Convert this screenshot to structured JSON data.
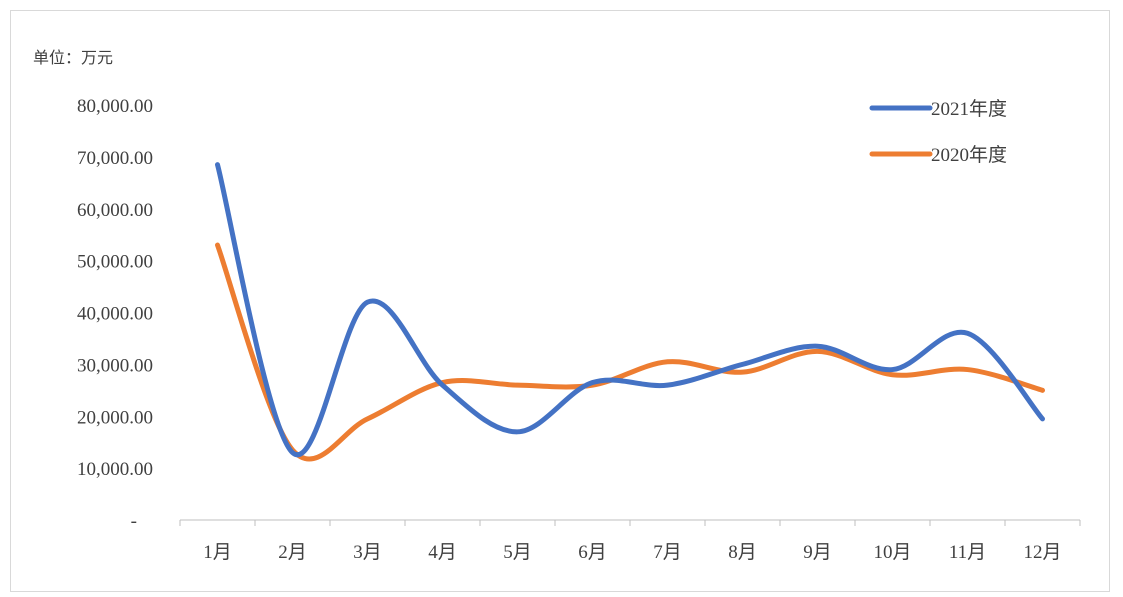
{
  "chart_data": {
    "type": "line",
    "unit_label": "单位：万元",
    "categories": [
      "1月",
      "2月",
      "3月",
      "4月",
      "5月",
      "6月",
      "7月",
      "8月",
      "9月",
      "10月",
      "11月",
      "12月"
    ],
    "series": [
      {
        "name": "2021年度",
        "color": "#4472C4",
        "values": [
          68500,
          13000,
          42000,
          26000,
          17000,
          26500,
          26000,
          30000,
          33500,
          29000,
          36000,
          19500
        ]
      },
      {
        "name": "2020年度",
        "color": "#ED7D31",
        "values": [
          53000,
          13500,
          19500,
          26500,
          26000,
          26000,
          30500,
          28500,
          32500,
          28000,
          29000,
          25000
        ]
      }
    ],
    "y_ticks": [
      0,
      10000,
      20000,
      30000,
      40000,
      50000,
      60000,
      70000,
      80000
    ],
    "y_tick_labels": [
      "-",
      "10,000.00",
      "20,000.00",
      "30,000.00",
      "40,000.00",
      "50,000.00",
      "60,000.00",
      "70,000.00",
      "80,000.00"
    ],
    "ylim": [
      0,
      80000
    ],
    "grid": false,
    "smooth": true,
    "legend_position": "top-right"
  }
}
